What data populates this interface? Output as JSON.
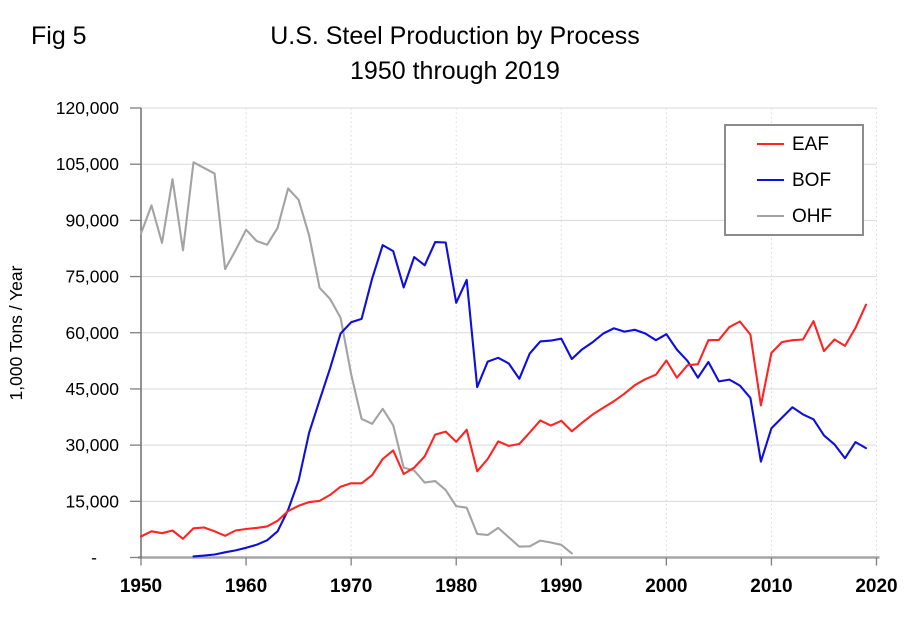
{
  "header": {
    "fig_label": "Fig 5",
    "title_line1": "U.S. Steel Production by Process",
    "title_line2": "1950 through 2019"
  },
  "y_axis": {
    "title": "1,000 Tons / Year",
    "tick_values": [
      0,
      15000,
      30000,
      45000,
      60000,
      75000,
      90000,
      105000,
      120000
    ],
    "tick_labels": [
      "-",
      "15,000",
      "30,000",
      "45,000",
      "60,000",
      "75,000",
      "90,000",
      "105,000",
      "120,000"
    ]
  },
  "x_axis": {
    "tick_labels": [
      "1950",
      "1960",
      "1970",
      "1980",
      "1990",
      "2000",
      "2010",
      "2020"
    ],
    "tick_values": [
      1950,
      1960,
      1970,
      1980,
      1990,
      2000,
      2010,
      2020
    ]
  },
  "legend": {
    "items": [
      {
        "label": "EAF",
        "color": "#ff2424"
      },
      {
        "label": "BOF",
        "color": "#0e0edd"
      },
      {
        "label": "OHF",
        "color": "#a3a3a3"
      }
    ]
  },
  "colors": {
    "background": "#ffffff",
    "grid": "#d9d9d9",
    "x_axis_line": "#a6a6a6",
    "y_axis_line": "#595959",
    "tick": "#7f7f7f",
    "text": "#000000"
  },
  "chart_data": {
    "type": "line",
    "title": "U.S. Steel Production by Process 1950 through 2019",
    "xlabel": "",
    "ylabel": "1,000 Tons / Year",
    "xlim": [
      1950,
      2020
    ],
    "ylim": [
      0,
      120000
    ],
    "grid": "horizontal solid, vertical dotted",
    "legend_position": "upper right inside box",
    "series": [
      {
        "name": "OHF",
        "color": "#a3a3a3",
        "x": [
          1950,
          1951,
          1952,
          1953,
          1954,
          1955,
          1956,
          1957,
          1958,
          1959,
          1960,
          1961,
          1962,
          1963,
          1964,
          1965,
          1966,
          1967,
          1968,
          1969,
          1970,
          1971,
          1972,
          1973,
          1974,
          1975,
          1976,
          1977,
          1978,
          1979,
          1980,
          1981,
          1982,
          1983,
          1984,
          1985,
          1986,
          1987,
          1988,
          1989,
          1990,
          1991
        ],
        "values": [
          86500,
          94000,
          84000,
          101000,
          82000,
          105500,
          104000,
          102500,
          77000,
          82000,
          87500,
          84500,
          83500,
          88000,
          98500,
          95500,
          86000,
          72000,
          69000,
          64000,
          49000,
          37000,
          35700,
          39700,
          35300,
          24000,
          23200,
          20000,
          20400,
          18000,
          13700,
          13300,
          6300,
          6000,
          7900,
          5400,
          2900,
          3000,
          4500,
          4000,
          3400,
          1100
        ]
      },
      {
        "name": "BOF",
        "color": "#0e0edd",
        "x": [
          1955,
          1956,
          1957,
          1958,
          1959,
          1960,
          1961,
          1962,
          1963,
          1964,
          1965,
          1966,
          1967,
          1968,
          1969,
          1970,
          1971,
          1972,
          1973,
          1974,
          1975,
          1976,
          1977,
          1978,
          1979,
          1980,
          1981,
          1982,
          1983,
          1984,
          1985,
          1986,
          1987,
          1988,
          1989,
          1990,
          1991,
          1992,
          1993,
          1994,
          1995,
          1996,
          1997,
          1998,
          1999,
          2000,
          2001,
          2002,
          2003,
          2004,
          2005,
          2006,
          2007,
          2008,
          2009,
          2010,
          2011,
          2012,
          2013,
          2014,
          2015,
          2016,
          2017,
          2018,
          2019
        ],
        "values": [
          300,
          500,
          800,
          1400,
          1900,
          2600,
          3400,
          4600,
          7000,
          12700,
          20500,
          33300,
          42000,
          50500,
          59800,
          62800,
          63700,
          74500,
          83400,
          81800,
          72100,
          80200,
          78000,
          84200,
          84100,
          68000,
          74100,
          45500,
          52300,
          53300,
          51800,
          47700,
          54500,
          57700,
          57900,
          58400,
          53000,
          55600,
          57500,
          59800,
          61200,
          60300,
          60800,
          59800,
          58000,
          59600,
          55500,
          52500,
          48000,
          52200,
          47000,
          47500,
          45900,
          42600,
          25600,
          34500,
          37300,
          40100,
          38200,
          36900,
          32600,
          30200,
          26500,
          30800,
          29200
        ]
      },
      {
        "name": "EAF",
        "color": "#ff2424",
        "x": [
          1950,
          1951,
          1952,
          1953,
          1954,
          1955,
          1956,
          1957,
          1958,
          1959,
          1960,
          1961,
          1962,
          1963,
          1964,
          1965,
          1966,
          1967,
          1968,
          1969,
          1970,
          1971,
          1972,
          1973,
          1974,
          1975,
          1976,
          1977,
          1978,
          1979,
          1980,
          1981,
          1982,
          1983,
          1984,
          1985,
          1986,
          1987,
          1988,
          1989,
          1990,
          1991,
          1992,
          1993,
          1994,
          1995,
          1996,
          1997,
          1998,
          1999,
          2000,
          2001,
          2002,
          2003,
          2004,
          2005,
          2006,
          2007,
          2008,
          2009,
          2010,
          2011,
          2012,
          2013,
          2014,
          2015,
          2016,
          2017,
          2018,
          2019
        ],
        "values": [
          5600,
          7000,
          6500,
          7200,
          5000,
          7800,
          8000,
          7000,
          5800,
          7200,
          7600,
          7900,
          8300,
          9800,
          12400,
          13800,
          14800,
          15100,
          16700,
          18900,
          19800,
          19800,
          22000,
          26300,
          28600,
          22300,
          24000,
          27000,
          32800,
          33600,
          30900,
          34100,
          23000,
          26300,
          31000,
          29800,
          30300,
          33400,
          36600,
          35200,
          36500,
          33700,
          36000,
          38200,
          40000,
          41700,
          43700,
          46000,
          47600,
          48800,
          52600,
          48000,
          51300,
          51600,
          58000,
          58100,
          61500,
          63000,
          59500,
          40600,
          54600,
          57500,
          58000,
          58200,
          63100,
          55100,
          58200,
          56500,
          61300,
          67500
        ]
      }
    ]
  }
}
